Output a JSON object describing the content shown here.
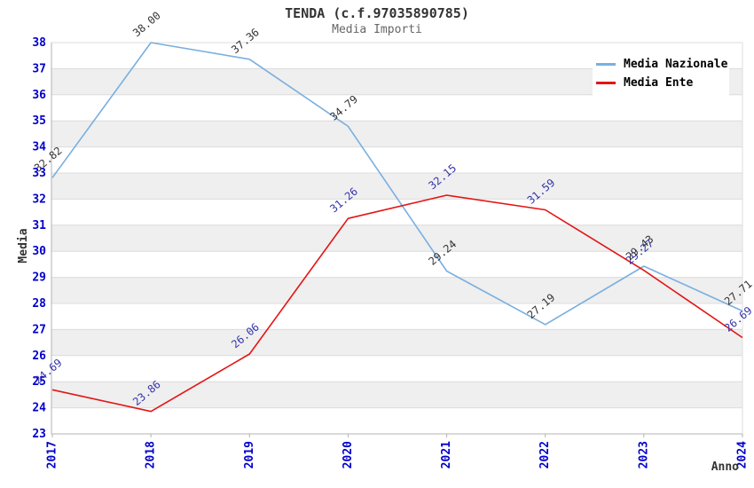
{
  "header": {
    "title": "TENDA (c.f.97035890785)",
    "subtitle": "Media Importi"
  },
  "legend": {
    "items": [
      {
        "label": "Media Nazionale",
        "color": "#79afdf"
      },
      {
        "label": "Media Ente",
        "color": "#e41414"
      }
    ]
  },
  "chart_data": {
    "type": "line",
    "title": "TENDA (c.f.97035890785)",
    "subtitle": "Media Importi",
    "xlabel": "Anno",
    "ylabel": "Media",
    "categories": [
      "2017",
      "2018",
      "2019",
      "2020",
      "2021",
      "2022",
      "2023",
      "2024"
    ],
    "ylim": [
      23,
      38
    ],
    "ytick_step": 1,
    "grid": true,
    "band_shading": true,
    "legend_position": "top-right",
    "series": [
      {
        "name": "Media Nazionale",
        "color": "#79afdf",
        "label_color": "#333333",
        "values": [
          32.82,
          38.0,
          37.36,
          34.79,
          29.24,
          27.19,
          29.43,
          27.71
        ]
      },
      {
        "name": "Media Ente",
        "color": "#e41414",
        "label_color": "#3333aa",
        "values": [
          24.69,
          23.86,
          26.06,
          31.26,
          32.15,
          31.59,
          29.27,
          26.69
        ]
      }
    ],
    "colors": {
      "tick_label": "#0000cc",
      "axis_title": "#333333",
      "band_fill": "#efefef",
      "gridline": "#dcdcdc",
      "spine": "#b3b3b3",
      "title": "#333333",
      "subtitle": "#666666"
    }
  }
}
